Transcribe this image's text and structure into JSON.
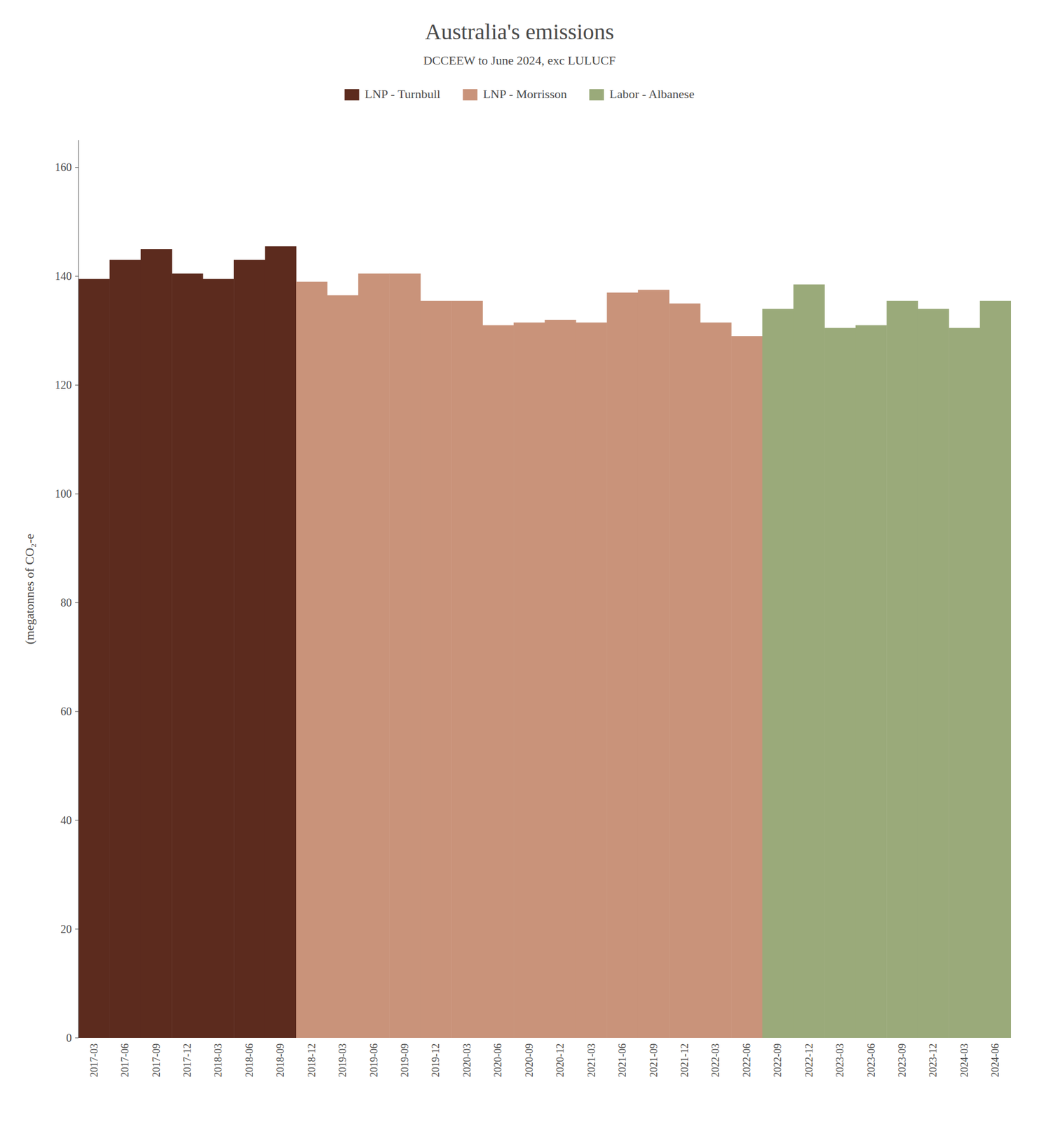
{
  "chart_data": {
    "type": "bar",
    "title": "Australia's emissions",
    "subtitle": "DCCEEW to June 2024, exc LULUCF",
    "ylabel": "(megatonnes of CO₂-e",
    "categories": [
      "2017-03",
      "2017-06",
      "2017-09",
      "2017-12",
      "2018-03",
      "2018-06",
      "2018-09",
      "2018-12",
      "2019-03",
      "2019-06",
      "2019-09",
      "2019-12",
      "2020-03",
      "2020-06",
      "2020-09",
      "2020-12",
      "2021-03",
      "2021-06",
      "2021-09",
      "2021-12",
      "2022-03",
      "2022-06",
      "2022-09",
      "2022-12",
      "2023-03",
      "2023-06",
      "2023-09",
      "2023-12",
      "2024-03",
      "2024-06"
    ],
    "series": [
      {
        "name": "LNP - Turnbull",
        "color": "#5c2b1e",
        "values": [
          139.5,
          143.0,
          145.0,
          140.5,
          139.5,
          143.0,
          145.5,
          null,
          null,
          null,
          null,
          null,
          null,
          null,
          null,
          null,
          null,
          null,
          null,
          null,
          null,
          null,
          null,
          null,
          null,
          null,
          null,
          null,
          null,
          null
        ]
      },
      {
        "name": "LNP - Morrisson",
        "color": "#c9937a",
        "values": [
          null,
          null,
          null,
          null,
          null,
          null,
          null,
          139.0,
          136.5,
          140.5,
          140.5,
          135.5,
          135.5,
          131.0,
          131.5,
          132.0,
          131.5,
          137.0,
          137.5,
          135.0,
          131.5,
          129.0,
          null,
          null,
          null,
          null,
          null,
          null,
          null,
          null
        ]
      },
      {
        "name": "Labor - Albanese",
        "color": "#9aaa7a",
        "values": [
          null,
          null,
          null,
          null,
          null,
          null,
          null,
          null,
          null,
          null,
          null,
          null,
          null,
          null,
          null,
          null,
          null,
          null,
          null,
          null,
          null,
          null,
          134.0,
          138.5,
          130.5,
          131.0,
          135.5,
          134.0,
          130.5,
          135.5
        ]
      }
    ],
    "ylim": [
      0,
      165
    ],
    "yticks": [
      0,
      20,
      40,
      60,
      80,
      100,
      120,
      140,
      160
    ],
    "grid": false,
    "legend": "top"
  }
}
